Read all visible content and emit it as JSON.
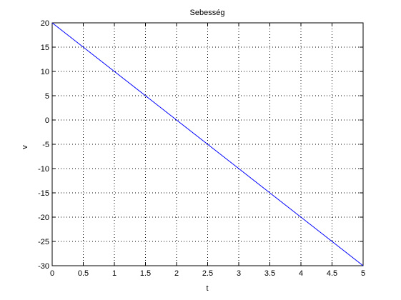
{
  "chart_data": {
    "type": "line",
    "title": "Sebesség",
    "x_label": "t",
    "y_label": "v",
    "x": [
      0,
      0.5,
      1,
      1.5,
      2,
      2.5,
      3,
      3.5,
      4,
      4.5,
      5
    ],
    "series": [
      {
        "color": "#0000ff",
        "values": [
          20,
          15,
          10,
          5,
          0,
          -5,
          -10,
          -15,
          -20,
          -25,
          -30
        ]
      }
    ],
    "xlim": [
      0,
      5
    ],
    "xticks": [
      0,
      0.5,
      1,
      1.5,
      2,
      2.5,
      3,
      3.5,
      4,
      4.5,
      5
    ],
    "ylim": [
      -30,
      20
    ],
    "yticks": [
      -30,
      -25,
      -20,
      -15,
      -10,
      -5,
      0,
      5,
      10,
      15,
      20
    ],
    "grid": true
  }
}
